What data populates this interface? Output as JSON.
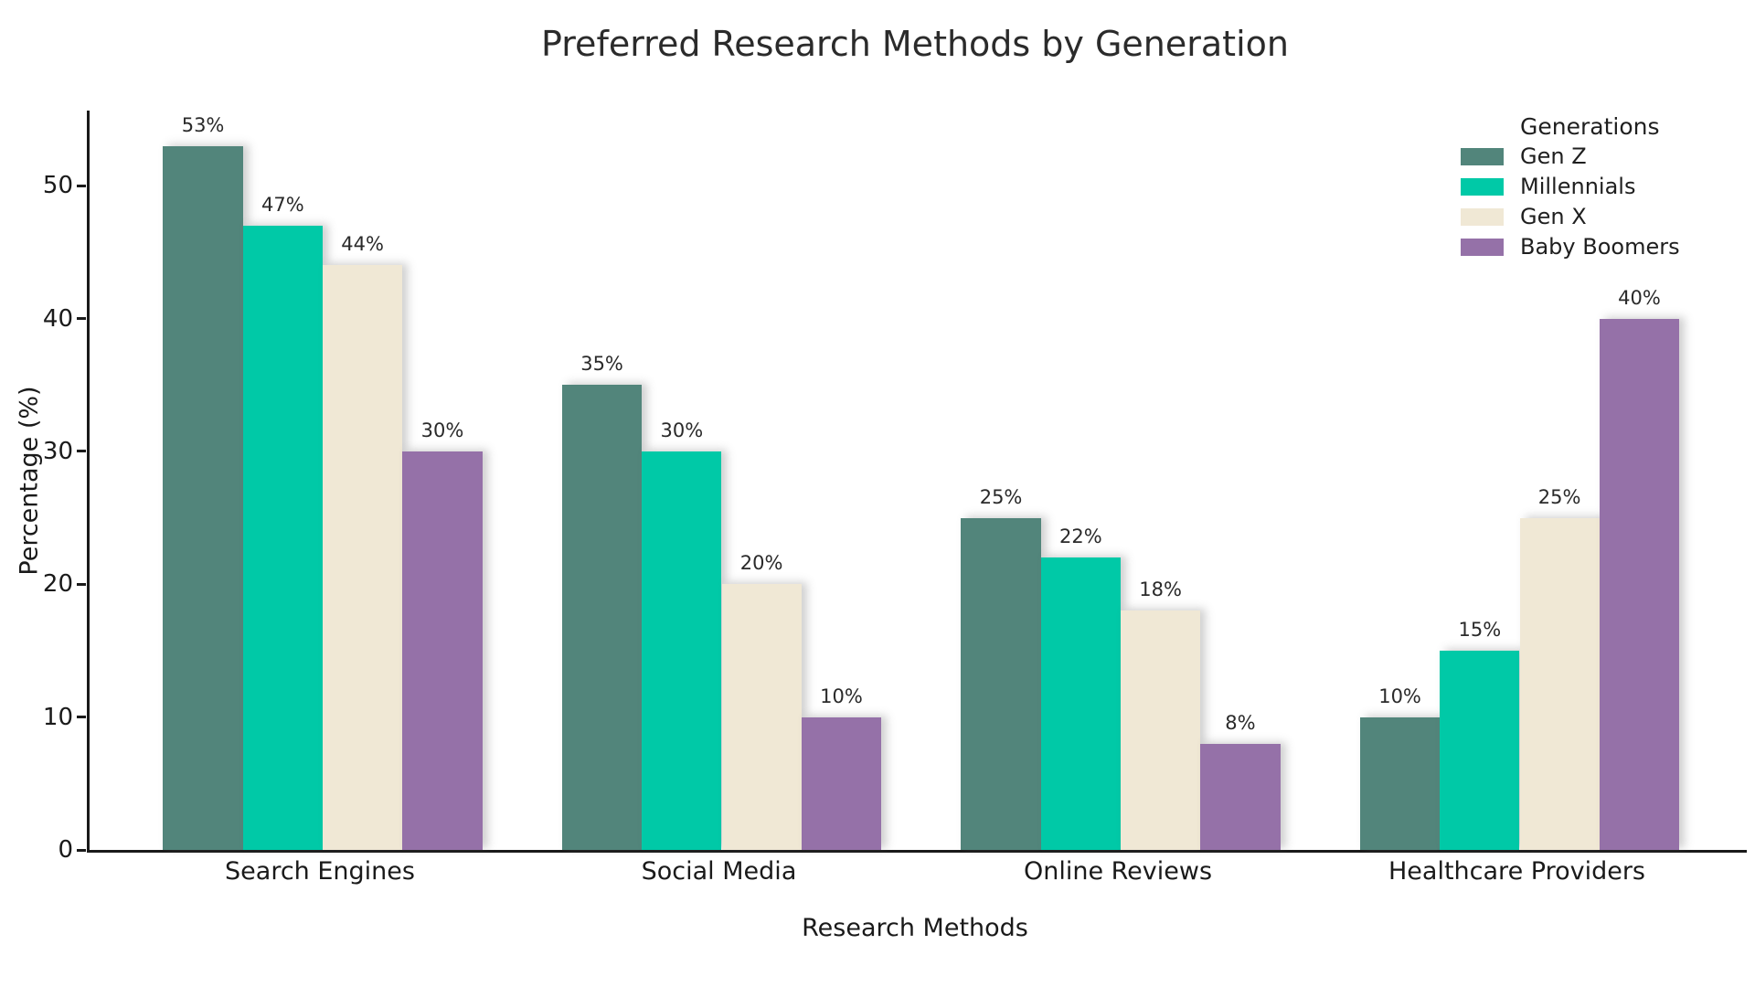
{
  "chart_data": {
    "type": "bar",
    "title": "Preferred Research Methods by Generation",
    "xlabel": "Research Methods",
    "ylabel": "Percentage (%)",
    "categories": [
      "Search Engines",
      "Social Media",
      "Online Reviews",
      "Healthcare Providers"
    ],
    "series": [
      {
        "name": "Gen Z",
        "color": "#52857B",
        "values": [
          53,
          35,
          25,
          10
        ]
      },
      {
        "name": "Millennials",
        "color": "#00C9A7",
        "values": [
          47,
          30,
          22,
          15
        ]
      },
      {
        "name": "Gen X",
        "color": "#F0E8D5",
        "values": [
          44,
          20,
          18,
          25
        ]
      },
      {
        "name": "Baby Boomers",
        "color": "#9571A8",
        "values": [
          30,
          10,
          8,
          40
        ]
      }
    ],
    "value_label_format": "{v}%",
    "yticks": [
      0,
      10,
      20,
      30,
      40,
      50
    ],
    "ylim": [
      0,
      55.65
    ],
    "grid": false,
    "legend": {
      "title": "Generations",
      "position": "upper right"
    }
  }
}
